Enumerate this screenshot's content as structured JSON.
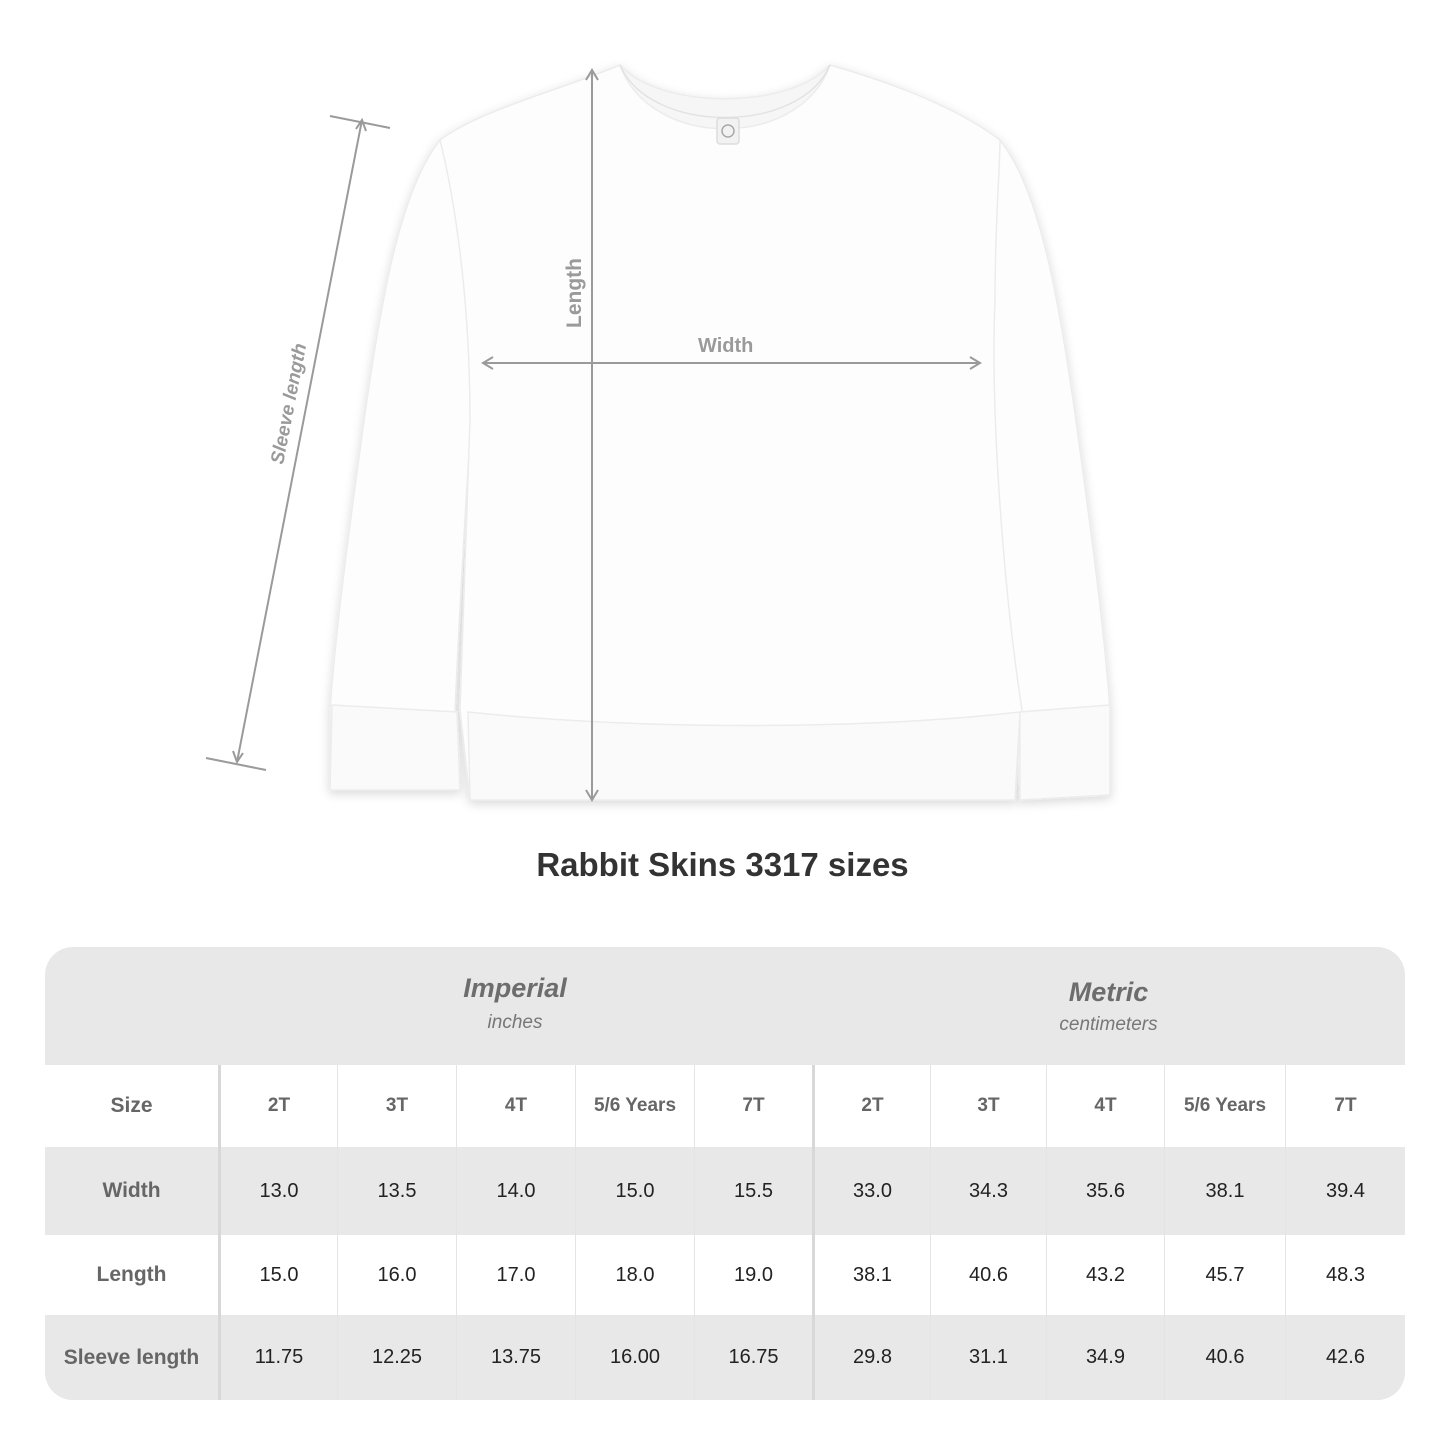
{
  "diagram": {
    "labels": {
      "sleeve": "Sleeve length",
      "length": "Length",
      "width": "Width"
    },
    "arrow_color": "#999999"
  },
  "title": "Rabbit Skins 3317 sizes",
  "table": {
    "imperial": {
      "title": "Imperial",
      "unit": "inches"
    },
    "metric": {
      "title": "Metric",
      "unit": "centimeters"
    },
    "size_label": "Size",
    "sizes": [
      "2T",
      "3T",
      "4T",
      "5/6 Years",
      "7T"
    ],
    "rows": [
      {
        "label": "Width",
        "imperial": [
          "13.0",
          "13.5",
          "14.0",
          "15.0",
          "15.5"
        ],
        "metric": [
          "33.0",
          "34.3",
          "35.6",
          "38.1",
          "39.4"
        ]
      },
      {
        "label": "Length",
        "imperial": [
          "15.0",
          "16.0",
          "17.0",
          "18.0",
          "19.0"
        ],
        "metric": [
          "38.1",
          "40.6",
          "43.2",
          "45.7",
          "48.3"
        ]
      },
      {
        "label": "Sleeve length",
        "imperial": [
          "11.75",
          "12.25",
          "13.75",
          "16.00",
          "16.75"
        ],
        "metric": [
          "29.8",
          "31.1",
          "34.9",
          "40.6",
          "42.6"
        ]
      }
    ]
  }
}
